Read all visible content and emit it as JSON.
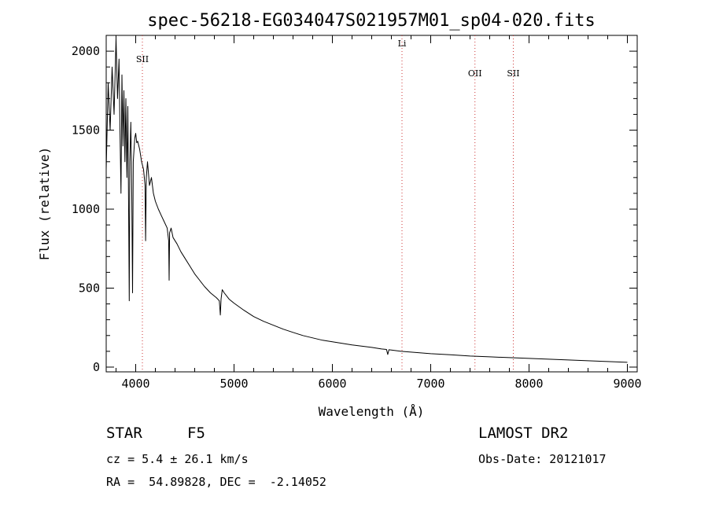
{
  "chart_data": {
    "type": "line",
    "title": "spec-56218-EG034047S021957M01_sp04-020.fits",
    "xlabel": "Wavelength (Å)",
    "ylabel": "Flux (relative)",
    "xlim": [
      3700,
      9100
    ],
    "ylim": [
      -30,
      2100
    ],
    "xticks": [
      4000,
      5000,
      6000,
      7000,
      8000,
      9000
    ],
    "yticks": [
      0,
      500,
      1000,
      1500,
      2000
    ],
    "grid": false,
    "legend": "none",
    "line_color": "#000000",
    "marker_color": "#cc3333",
    "series": [
      {
        "x": [
          3700,
          3720,
          3740,
          3760,
          3780,
          3800,
          3815,
          3830,
          3840,
          3850,
          3860,
          3870,
          3880,
          3890,
          3900,
          3910,
          3920,
          3930,
          3934,
          3940,
          3950,
          3960,
          3968,
          3975,
          3990,
          4000,
          4010,
          4020,
          4040,
          4060,
          4080,
          4095,
          4101,
          4108,
          4120,
          4140,
          4160,
          4180,
          4200,
          4230,
          4260,
          4290,
          4320,
          4335,
          4340,
          4345,
          4360,
          4380,
          4420,
          4460,
          4500,
          4550,
          4600,
          4650,
          4700,
          4760,
          4820,
          4850,
          4861,
          4868,
          4880,
          4900,
          4950,
          5000,
          5100,
          5200,
          5300,
          5400,
          5500,
          5600,
          5700,
          5800,
          5900,
          6000,
          6200,
          6400,
          6500,
          6550,
          6563,
          6575,
          6600,
          6700,
          6800,
          7000,
          7200,
          7400,
          7600,
          7800,
          8000,
          8200,
          8400,
          8600,
          8800,
          9000
        ],
        "values": [
          1250,
          1800,
          1500,
          1900,
          1600,
          2080,
          1700,
          1950,
          1500,
          1100,
          1850,
          1400,
          1750,
          1300,
          1700,
          1200,
          1650,
          800,
          420,
          1300,
          1550,
          1100,
          470,
          1300,
          1450,
          1480,
          1420,
          1430,
          1380,
          1300,
          1250,
          1150,
          800,
          1200,
          1300,
          1150,
          1200,
          1100,
          1050,
          1000,
          960,
          920,
          880,
          800,
          550,
          850,
          880,
          820,
          780,
          730,
          690,
          640,
          590,
          550,
          510,
          470,
          440,
          420,
          330,
          430,
          490,
          470,
          430,
          405,
          360,
          320,
          290,
          265,
          240,
          220,
          200,
          185,
          170,
          160,
          140,
          125,
          115,
          112,
          80,
          110,
          108,
          100,
          95,
          85,
          78,
          70,
          65,
          60,
          55,
          50,
          45,
          40,
          35,
          30
        ]
      }
    ],
    "line_markers": [
      {
        "label": "SII",
        "x": 4068,
        "label_y": 1930
      },
      {
        "label": "Li",
        "x": 6708,
        "label_y": 2030
      },
      {
        "label": "OII",
        "x": 7450,
        "label_y": 1840
      },
      {
        "label": "SII",
        "x": 7840,
        "label_y": 1840
      }
    ]
  },
  "info": {
    "class": "STAR",
    "subclass": "F5",
    "survey": "LAMOST DR2",
    "cz": "cz = 5.4 ± 26.1 km/s",
    "obs_date": "Obs-Date: 20121017",
    "coords": "RA =  54.89828, DEC =  -2.14052"
  }
}
